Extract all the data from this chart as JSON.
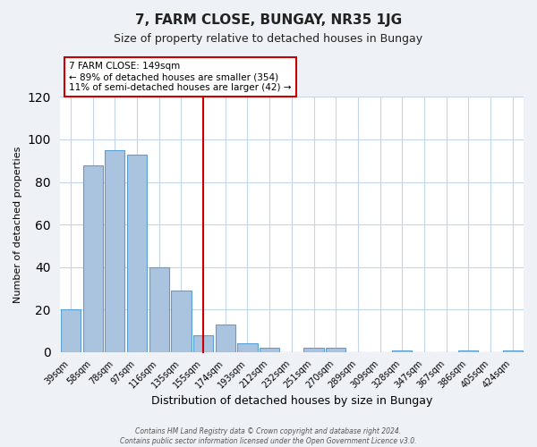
{
  "title": "7, FARM CLOSE, BUNGAY, NR35 1JG",
  "subtitle": "Size of property relative to detached houses in Bungay",
  "xlabel": "Distribution of detached houses by size in Bungay",
  "ylabel": "Number of detached properties",
  "bar_labels": [
    "39sqm",
    "58sqm",
    "78sqm",
    "97sqm",
    "116sqm",
    "135sqm",
    "155sqm",
    "174sqm",
    "193sqm",
    "212sqm",
    "232sqm",
    "251sqm",
    "270sqm",
    "289sqm",
    "309sqm",
    "328sqm",
    "347sqm",
    "367sqm",
    "386sqm",
    "405sqm",
    "424sqm"
  ],
  "bar_values": [
    20,
    88,
    95,
    93,
    40,
    29,
    8,
    13,
    4,
    2,
    0,
    2,
    2,
    0,
    0,
    1,
    0,
    0,
    1,
    0,
    1
  ],
  "bar_color": "#aac4e0",
  "bar_edge_color": "#5a9fd4",
  "vline_color": "#cc0000",
  "annotation_title": "7 FARM CLOSE: 149sqm",
  "annotation_line1": "← 89% of detached houses are smaller (354)",
  "annotation_line2": "11% of semi-detached houses are larger (42) →",
  "annotation_box_color": "#ffffff",
  "annotation_box_edge_color": "#cc0000",
  "ylim": [
    0,
    120
  ],
  "yticks": [
    0,
    20,
    40,
    60,
    80,
    100,
    120
  ],
  "footer1": "Contains HM Land Registry data © Crown copyright and database right 2024.",
  "footer2": "Contains public sector information licensed under the Open Government Licence v3.0.",
  "bg_color": "#eef2f7",
  "plot_bg_color": "#ffffff",
  "grid_color": "#c5d5e8"
}
